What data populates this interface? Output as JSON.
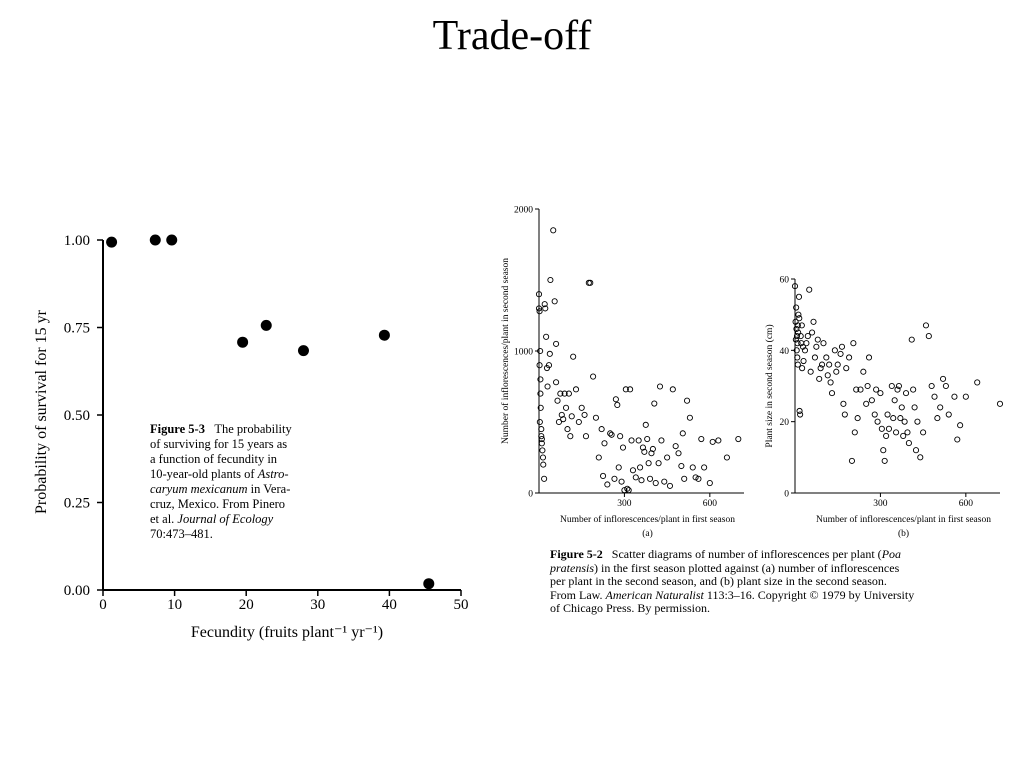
{
  "slide": {
    "title": "Trade-off"
  },
  "figure3": {
    "caption": {
      "label": "Figure 5-3",
      "line1": "The probability",
      "line2": "of surviving for 15 years as",
      "line3": "a function of fecundity in",
      "line4a": "10-year-old plants of ",
      "line4b": "Astro-",
      "line5a": "caryum mexicanum",
      "line5b": " in Vera-",
      "line6": "cruz, Mexico. From Pinero",
      "line7a": "et al. ",
      "line7b": "Journal of Ecology",
      "line8": "70:473–481."
    }
  },
  "figure2": {
    "caption": {
      "label": "Figure 5-2",
      "l1a": "Scatter diagrams of number of inflorescences per plant (",
      "l1b": "Poa",
      "l2a": "pratensis",
      "l2b": ") in the first season plotted against (a) number of inflorescences",
      "l3": "per plant in the second season, and (b) plant size in the second season.",
      "l4a": "From Law. ",
      "l4b": "American Naturalist",
      "l4c": " 113:3–16. Copyright © 1979 by University",
      "l5": "of Chicago Press. By permission."
    }
  },
  "chart_data": [
    {
      "type": "scatter",
      "title": "",
      "xlabel": "Fecundity (fruits plant⁻¹ yr⁻¹)",
      "ylabel": "Probability of survival for 15 yr",
      "xlim": [
        0,
        50
      ],
      "ylim": [
        0,
        1
      ],
      "xticks": [
        "0",
        "10",
        "20",
        "30",
        "40",
        "50"
      ],
      "yticks": [
        "0.00",
        "0.25",
        "0.50",
        "0.75",
        "1.00"
      ],
      "points": [
        {
          "x": 1.2,
          "y": 0.994
        },
        {
          "x": 7.3,
          "y": 1.0
        },
        {
          "x": 9.6,
          "y": 1.0
        },
        {
          "x": 19.5,
          "y": 0.708
        },
        {
          "x": 22.8,
          "y": 0.756
        },
        {
          "x": 28.0,
          "y": 0.684
        },
        {
          "x": 39.3,
          "y": 0.728
        },
        {
          "x": 45.5,
          "y": 0.018
        }
      ]
    },
    {
      "type": "scatter",
      "panel": "(a)",
      "xlabel": "Number of inflorescences/plant in first season",
      "ylabel": "Number of inflorescences/plant in second season",
      "xlim": [
        0,
        720
      ],
      "ylim": [
        0,
        2000
      ],
      "xticks": [
        "300",
        "600"
      ],
      "yticks": [
        "0",
        "1000",
        "2000"
      ],
      "x": [
        0,
        0,
        2,
        2,
        4,
        5,
        5,
        6,
        3,
        8,
        8,
        10,
        10,
        12,
        14,
        15,
        18,
        20,
        22,
        25,
        28,
        30,
        35,
        38,
        40,
        50,
        55,
        60,
        60,
        65,
        70,
        75,
        80,
        85,
        90,
        95,
        100,
        105,
        110,
        115,
        120,
        130,
        140,
        150,
        160,
        165,
        175,
        180,
        190,
        200,
        210,
        220,
        225,
        230,
        240,
        250,
        255,
        265,
        270,
        275,
        280,
        285,
        290,
        295,
        300,
        305,
        310,
        315,
        320,
        325,
        330,
        340,
        350,
        355,
        360,
        365,
        370,
        375,
        380,
        385,
        390,
        395,
        400,
        405,
        410,
        420,
        425,
        430,
        440,
        450,
        460,
        470,
        480,
        490,
        500,
        505,
        510,
        520,
        530,
        540,
        550,
        560,
        570,
        580,
        600,
        610,
        630,
        660,
        700
      ],
      "y": [
        1400,
        1300,
        1280,
        900,
        1000,
        800,
        700,
        600,
        500,
        450,
        400,
        380,
        350,
        300,
        250,
        200,
        100,
        1330,
        1300,
        1100,
        880,
        750,
        900,
        980,
        1500,
        1850,
        1350,
        1050,
        780,
        650,
        500,
        700,
        550,
        520,
        700,
        600,
        450,
        700,
        400,
        540,
        960,
        730,
        500,
        600,
        550,
        400,
        1480,
        1480,
        820,
        530,
        250,
        450,
        120,
        350,
        60,
        420,
        410,
        100,
        660,
        620,
        180,
        400,
        80,
        320,
        20,
        730,
        30,
        20,
        730,
        370,
        160,
        110,
        370,
        180,
        90,
        320,
        290,
        480,
        380,
        210,
        100,
        280,
        310,
        630,
        70,
        210,
        750,
        370,
        80,
        250,
        50,
        730,
        330,
        280,
        190,
        420,
        100,
        650,
        530,
        180,
        110,
        100,
        380,
        180,
        70,
        360,
        370,
        250,
        380
      ]
    },
    {
      "type": "scatter",
      "panel": "(b)",
      "xlabel": "Number of inflorescences/plant in first season",
      "ylabel": "Plant size in second season (cm)",
      "xlim": [
        0,
        720
      ],
      "ylim": [
        0,
        60
      ],
      "xticks": [
        "300",
        "600"
      ],
      "yticks": [
        "0",
        "20",
        "40",
        "60"
      ],
      "x": [
        0,
        2,
        3,
        4,
        5,
        6,
        7,
        8,
        9,
        10,
        10,
        11,
        12,
        14,
        15,
        16,
        18,
        20,
        22,
        24,
        25,
        28,
        30,
        35,
        40,
        45,
        50,
        55,
        60,
        65,
        70,
        75,
        80,
        85,
        90,
        95,
        100,
        110,
        115,
        120,
        125,
        130,
        140,
        145,
        150,
        160,
        165,
        170,
        175,
        180,
        190,
        200,
        205,
        210,
        215,
        220,
        230,
        240,
        250,
        255,
        260,
        270,
        280,
        285,
        290,
        300,
        305,
        310,
        315,
        320,
        325,
        330,
        340,
        345,
        350,
        355,
        360,
        365,
        370,
        375,
        380,
        385,
        390,
        395,
        400,
        410,
        415,
        420,
        425,
        430,
        440,
        450,
        460,
        470,
        480,
        490,
        500,
        510,
        520,
        530,
        540,
        560,
        570,
        580,
        600,
        640,
        720
      ],
      "y": [
        58,
        48,
        43,
        52,
        46,
        40,
        44,
        38,
        42,
        36,
        47,
        45,
        50,
        55,
        49,
        23,
        22,
        44,
        42,
        47,
        35,
        41,
        37,
        40,
        42,
        44,
        57,
        34,
        45,
        48,
        38,
        41,
        43,
        32,
        35,
        36,
        42,
        38,
        33,
        36,
        31,
        28,
        40,
        34,
        36,
        39,
        41,
        25,
        22,
        35,
        38,
        9,
        42,
        17,
        29,
        21,
        29,
        34,
        25,
        30,
        38,
        26,
        22,
        29,
        20,
        28,
        18,
        12,
        9,
        16,
        22,
        18,
        30,
        21,
        26,
        17,
        29,
        30,
        21,
        24,
        16,
        20,
        28,
        17,
        14,
        43,
        29,
        24,
        12,
        20,
        10,
        17,
        47,
        44,
        30,
        27,
        21,
        24,
        32,
        30,
        22,
        27,
        15,
        19,
        27,
        31,
        25
      ]
    }
  ]
}
